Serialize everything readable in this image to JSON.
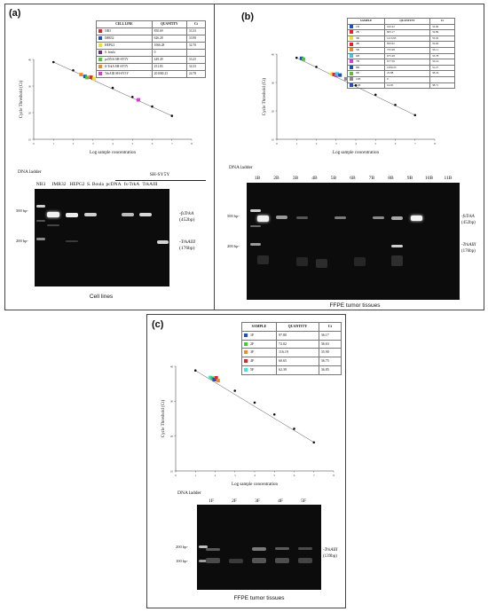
{
  "panel_a": {
    "label": "(a)",
    "table": {
      "headers": [
        "CELL LINE",
        "QUANTITY",
        "Ct"
      ],
      "rows": [
        {
          "color": "#e8202a",
          "name": "NB3",
          "quantity": "850.69",
          "ct": "33.33"
        },
        {
          "color": "#1a4fd0",
          "name": "IMR32",
          "quantity": "626.28",
          "ct": "33.98"
        },
        {
          "color": "#f0e020",
          "name": "HEPG2",
          "quantity": "1066.28",
          "ct": "32.70"
        },
        {
          "color": "#6a2a8a",
          "name": "S. boula",
          "quantity": "0",
          "ct": ""
        },
        {
          "color": "#4cc830",
          "name": "pcDNA SH-SY5Y",
          "quantity": "449.49",
          "ct": "33.25"
        },
        {
          "color": "#ee8a2a",
          "name": "fl-TrkA SH-SY5Y",
          "quantity": "251.83",
          "ct": "34.33"
        },
        {
          "color": "#e038e0",
          "name": "TrkAIII SH-SY5Y",
          "quantity": "201000.23",
          "ct": "24.78"
        }
      ]
    },
    "chart_data": {
      "type": "scatter",
      "xlabel": "Log sample concentration",
      "ylabel": "Cycle Threshold (Ct)",
      "xlim": [
        0,
        8
      ],
      "ylim": [
        10,
        40
      ],
      "xticks": [
        "0",
        "1",
        "2",
        "3",
        "4",
        "5",
        "6",
        "7",
        "8"
      ],
      "yticks": [
        "10",
        "20",
        "30",
        "40"
      ],
      "standard_points": [
        [
          1,
          39.0
        ],
        [
          2,
          35.9
        ],
        [
          3,
          32.6
        ],
        [
          4,
          29.3
        ],
        [
          5,
          25.9
        ],
        [
          6,
          22.3
        ],
        [
          7,
          18.8
        ]
      ],
      "sample_points": [
        {
          "x": 2.6,
          "y": 33.6,
          "color": "#1a4fd0"
        },
        {
          "x": 2.9,
          "y": 33.3,
          "color": "#e8202a"
        },
        {
          "x": 3.05,
          "y": 32.7,
          "color": "#f0e020"
        },
        {
          "x": 2.4,
          "y": 34.3,
          "color": "#ee8a2a"
        },
        {
          "x": 2.7,
          "y": 33.2,
          "color": "#4cc830"
        },
        {
          "x": 5.3,
          "y": 24.8,
          "color": "#e038e0"
        }
      ]
    },
    "gel": {
      "ladder_label": "DNA ladder",
      "lanes": [
        "NB3",
        "IMR32",
        "HEPG2",
        "S. Boula",
        "pcDNA",
        "fs-TrkA",
        "TrkAIII"
      ],
      "group_label": "SH-SY5Y",
      "markers": [
        "500 bp-",
        "200 bp-"
      ],
      "right_labels": [
        {
          "gene": "-fsTrkA",
          "size": "(452bp)"
        },
        {
          "gene": "-TrkAIII",
          "size": "(176bp)"
        }
      ],
      "caption": "Cell lines"
    }
  },
  "panel_b": {
    "label": "(b)",
    "table": {
      "headers": [
        "SAMPLE",
        "QUANTITY",
        "Ct"
      ],
      "rows": [
        {
          "color": "#1a4fd0",
          "name": "1B",
          "quantity": "910.22",
          "ct": "32.99"
        },
        {
          "color": "#e8202a",
          "name": "2B",
          "quantity": "803.17",
          "ct": "32.89"
        },
        {
          "color": "#f0e020",
          "name": "3B",
          "quantity": "1413.95",
          "ct": "33.02"
        },
        {
          "color": "#e8202a",
          "name": "4B",
          "quantity": "850.92",
          "ct": "32.66"
        },
        {
          "color": "#ee8a2a",
          "name": "5B",
          "quantity": "735.98",
          "ct": "33.11"
        },
        {
          "color": "#38c8e8",
          "name": "6B",
          "quantity": "675.28",
          "ct": "33.78"
        },
        {
          "color": "#e038e0",
          "name": "7B",
          "quantity": "677.59",
          "ct": "33.14"
        },
        {
          "color": "#2050a8",
          "name": "8B",
          "quantity": "1000.23",
          "ct": "31.27"
        },
        {
          "color": "#4cc830",
          "name": "9B",
          "quantity": "22.88",
          "ct": "38.24"
        },
        {
          "color": "#8a8a8a",
          "name": "10B",
          "quantity": "0",
          "ct": ""
        },
        {
          "color": "#1a4fd0",
          "name": "11B",
          "quantity": "16.95",
          "ct": "38.71"
        }
      ]
    },
    "chart_data": {
      "type": "scatter",
      "xlabel": "Log sample concentration",
      "ylabel": "Cycle Threshold (Ct)",
      "xlim": [
        0,
        8
      ],
      "ylim": [
        10,
        40
      ],
      "xticks": [
        "0",
        "1",
        "2",
        "3",
        "4",
        "5",
        "6",
        "7",
        "8"
      ],
      "yticks": [
        "10",
        "20",
        "30",
        "40"
      ],
      "standard_points": [
        [
          1,
          38.7
        ],
        [
          2,
          35.5
        ],
        [
          3,
          32.3
        ],
        [
          4,
          29.0
        ],
        [
          5,
          25.7
        ],
        [
          6,
          22.1
        ],
        [
          7,
          18.5
        ]
      ],
      "sample_points": [
        {
          "x": 1.25,
          "y": 38.5,
          "color": "#1a4fd0"
        },
        {
          "x": 1.35,
          "y": 38.2,
          "color": "#4cc830"
        },
        {
          "x": 2.8,
          "y": 33.0,
          "color": "#f0e020"
        },
        {
          "x": 2.9,
          "y": 32.8,
          "color": "#e8202a"
        },
        {
          "x": 3.0,
          "y": 32.5,
          "color": "#e038e0"
        },
        {
          "x": 3.05,
          "y": 33.0,
          "color": "#38c8e8"
        },
        {
          "x": 3.2,
          "y": 32.6,
          "color": "#2050a8"
        },
        {
          "x": 3.5,
          "y": 31.3,
          "color": "#8a8a8a"
        }
      ]
    },
    "gel": {
      "ladder_label": "DNA ladder",
      "lanes": [
        "1B",
        "2B",
        "3B",
        "4B",
        "5B",
        "6B",
        "7B",
        "8B",
        "9B",
        "10B",
        "11B"
      ],
      "markers": [
        "500 bp-",
        "200 bp-"
      ],
      "right_labels": [
        {
          "gene": "-fsTrkA",
          "size": "(452bp)"
        },
        {
          "gene": "-TrkAIII",
          "size": "(176bp)"
        }
      ],
      "caption": "FFPE tumor tissues"
    }
  },
  "panel_c": {
    "label": "(c)",
    "table": {
      "headers": [
        "SAMPLE",
        "QUANTITY",
        "Ct"
      ],
      "rows": [
        {
          "color": "#1a4fd0",
          "name": "1F",
          "quantity": "97.80",
          "ct": "36.17"
        },
        {
          "color": "#4cc830",
          "name": "2F",
          "quantity": "72.02",
          "ct": "36.63"
        },
        {
          "color": "#ee8a2a",
          "name": "3F",
          "quantity": "116.19",
          "ct": "35.90"
        },
        {
          "color": "#e8202a",
          "name": "4F",
          "quantity": "60.65",
          "ct": "36.75"
        },
        {
          "color": "#38e8e8",
          "name": "5F",
          "quantity": "62.39",
          "ct": "36.85"
        }
      ]
    },
    "chart_data": {
      "type": "scatter",
      "xlabel": "Log sample concentration",
      "ylabel": "Cycle Threshold (Ct)",
      "xlim": [
        0,
        8
      ],
      "ylim": [
        10,
        40
      ],
      "xticks": [
        "0",
        "1",
        "2",
        "3",
        "4",
        "5",
        "6",
        "7",
        "8"
      ],
      "yticks": [
        "10",
        "20",
        "30",
        "40"
      ],
      "standard_points": [
        [
          1,
          38.8
        ],
        [
          2,
          36.0
        ],
        [
          3,
          33.0
        ],
        [
          4,
          29.6
        ],
        [
          5,
          26.2
        ],
        [
          6,
          22.1
        ],
        [
          7,
          18.2
        ]
      ],
      "sample_points": [
        {
          "x": 1.75,
          "y": 36.8,
          "color": "#38e8e8"
        },
        {
          "x": 1.85,
          "y": 36.6,
          "color": "#4cc830"
        },
        {
          "x": 1.95,
          "y": 36.2,
          "color": "#1a4fd0"
        },
        {
          "x": 2.05,
          "y": 36.7,
          "color": "#e8202a"
        },
        {
          "x": 2.15,
          "y": 35.9,
          "color": "#ee8a2a"
        }
      ]
    },
    "gel": {
      "ladder_label": "DNA ladder",
      "lanes": [
        "1F",
        "2F",
        "3F",
        "4F",
        "5F"
      ],
      "markers": [
        "200 bp-",
        "100 bp-"
      ],
      "right_labels": [
        {
          "gene": "-TrkAIII",
          "size": "(139bp)"
        }
      ],
      "caption": "FFPE tumor tissues"
    }
  }
}
